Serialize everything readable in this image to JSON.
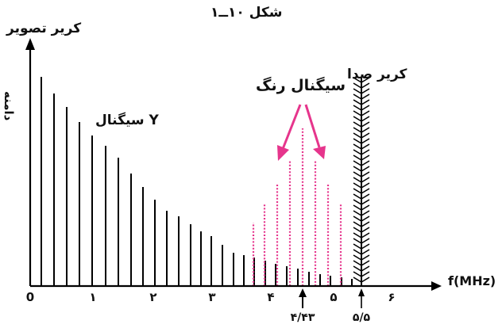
{
  "figure": {
    "title": "شکل ۱۰ــ۱",
    "y_label": "کریر تصویر",
    "amplitude_label": "دامنه",
    "luma_label": "سیگنال Y",
    "chroma_label": "سیگنال رنگ",
    "sound_label": "کریر صدا",
    "x_label": "f(MHz)",
    "x_ticks": [
      "0",
      "۱",
      "۲",
      "۳",
      "۴",
      "۵",
      "۶"
    ],
    "chroma_marker": "۴/۴۳",
    "sound_marker": "۵/۵"
  },
  "colors": {
    "axis": "#000000",
    "chroma": "#e6358c"
  }
}
